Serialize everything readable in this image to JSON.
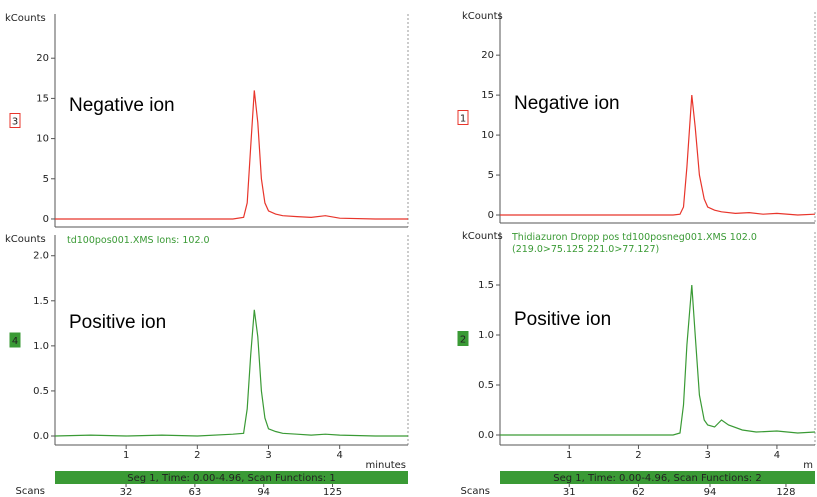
{
  "chart_data": [
    {
      "type": "line",
      "ylabel": "kCounts",
      "trace_label": "3",
      "annotation": "Negative ion",
      "color": "#e8352b",
      "xlim": [
        0,
        4.96
      ],
      "ylim": [
        -1,
        25.5
      ],
      "yticks": [
        0,
        5,
        10,
        15,
        20
      ],
      "x": [
        0,
        0.5,
        1,
        1.5,
        2,
        2.5,
        2.65,
        2.7,
        2.75,
        2.8,
        2.85,
        2.9,
        2.95,
        3.0,
        3.1,
        3.2,
        3.4,
        3.6,
        3.8,
        4.0,
        4.5,
        4.96
      ],
      "values": [
        0,
        0,
        0,
        0,
        0,
        0,
        0.2,
        2,
        9,
        16,
        12,
        5,
        2,
        1,
        0.6,
        0.4,
        0.3,
        0.2,
        0.4,
        0.1,
        0,
        0
      ]
    },
    {
      "type": "line",
      "ylabel": "kCounts",
      "trace_label": "4",
      "annotation": "Positive ion",
      "color": "#3a9a35",
      "header": "td100pos001.XMS Ions: 102.0",
      "xlabel": "minutes",
      "xlim": [
        0,
        4.96
      ],
      "xticks": [
        1,
        2,
        3,
        4
      ],
      "ylim": [
        -0.1,
        2.23
      ],
      "yticks": [
        {
          "value": 0,
          "label": "0.0"
        },
        {
          "value": 0.5,
          "label": "0.5"
        },
        {
          "value": 1,
          "label": "1.0"
        },
        {
          "value": 1.5,
          "label": "1.5"
        },
        {
          "value": 2,
          "label": "2.0"
        }
      ],
      "x": [
        0,
        0.5,
        1,
        1.5,
        2,
        2.5,
        2.65,
        2.7,
        2.75,
        2.8,
        2.85,
        2.9,
        2.95,
        3.0,
        3.1,
        3.2,
        3.4,
        3.6,
        3.8,
        4.0,
        4.5,
        4.96
      ],
      "values": [
        0,
        0.01,
        0,
        0.01,
        0,
        0.02,
        0.03,
        0.3,
        0.9,
        1.4,
        1.1,
        0.5,
        0.2,
        0.08,
        0.05,
        0.03,
        0.02,
        0.01,
        0.02,
        0.01,
        0,
        0
      ],
      "scan_bar": "Seg 1, Time: 0.00-4.96, Scan Functions: 1",
      "x2label": "Scans",
      "x2lim": [
        0,
        159
      ],
      "x2ticks": [
        32,
        63,
        94,
        125
      ]
    },
    {
      "type": "line",
      "ylabel": "kCounts",
      "trace_label": "1",
      "annotation": "Negative ion",
      "color": "#e8352b",
      "xlim": [
        0,
        4.55
      ],
      "ylim": [
        -1,
        25.4
      ],
      "yticks": [
        0,
        5,
        10,
        15,
        20
      ],
      "x": [
        0,
        0.5,
        1,
        1.5,
        2,
        2.5,
        2.6,
        2.65,
        2.7,
        2.77,
        2.82,
        2.88,
        2.95,
        3.0,
        3.1,
        3.2,
        3.4,
        3.6,
        3.8,
        4.0,
        4.3,
        4.55
      ],
      "values": [
        0,
        0,
        0,
        0,
        0,
        0,
        0.1,
        1,
        6,
        15,
        11,
        5,
        2,
        1,
        0.6,
        0.4,
        0.2,
        0.3,
        0.1,
        0.2,
        0,
        0.1
      ]
    },
    {
      "type": "line",
      "ylabel": "kCounts",
      "trace_label": "2",
      "annotation": "Positive ion",
      "color": "#3a9a35",
      "header": "Thidiazuron Dropp pos td100posneg001.XMS 102.0 (219.0>75.125 221.0>77.127)",
      "xlabel": "m",
      "xlim": [
        0,
        4.55
      ],
      "xticks": [
        1,
        2,
        3,
        4
      ],
      "ylim": [
        -0.1,
        2.03
      ],
      "yticks": [
        {
          "value": 0,
          "label": "0.0"
        },
        {
          "value": 0.5,
          "label": "0.5"
        },
        {
          "value": 1,
          "label": "1.0"
        },
        {
          "value": 1.5,
          "label": "1.5"
        }
      ],
      "x": [
        0,
        0.5,
        1,
        1.5,
        2,
        2.5,
        2.6,
        2.65,
        2.7,
        2.77,
        2.82,
        2.88,
        2.95,
        3.0,
        3.1,
        3.2,
        3.3,
        3.5,
        3.7,
        4.0,
        4.3,
        4.55
      ],
      "values": [
        0,
        0,
        0,
        0,
        0,
        0,
        0.02,
        0.3,
        0.9,
        1.5,
        1.0,
        0.4,
        0.15,
        0.1,
        0.08,
        0.15,
        0.1,
        0.05,
        0.03,
        0.04,
        0.02,
        0.03
      ],
      "scan_bar": "Seg 1, Time: 0.00-4.96, Scan Functions: 2",
      "x2label": "Scans",
      "x2lim": [
        0,
        141
      ],
      "x2ticks": [
        31,
        62,
        94,
        128
      ]
    }
  ]
}
